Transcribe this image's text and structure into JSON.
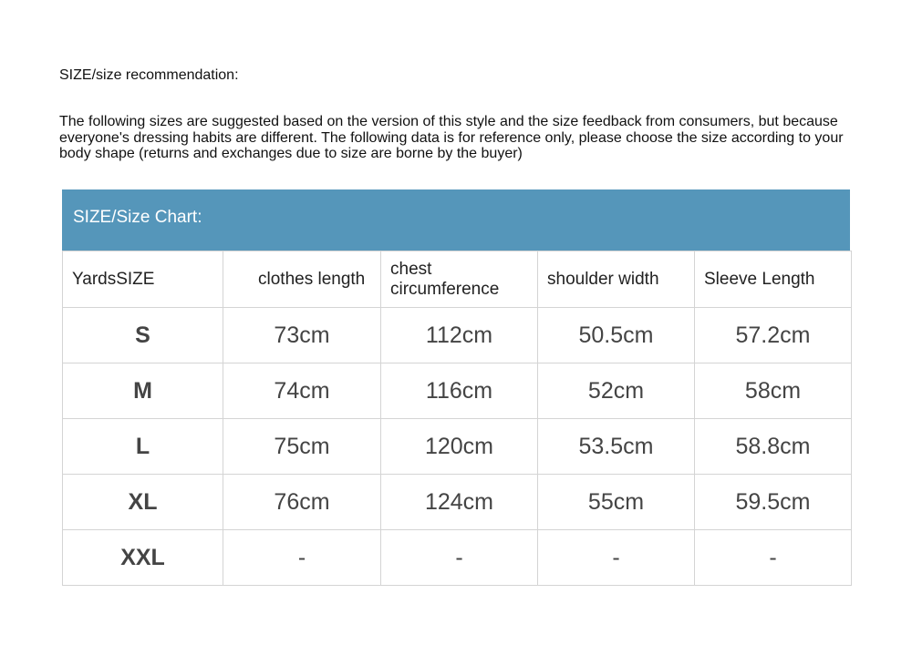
{
  "heading": "SIZE/size recommendation:",
  "intro": "The following sizes are suggested based on the version of this style and the size feedback from consumers, but because everyone's dressing habits are different. The following data is for reference only, please choose the size according to your body shape (returns and exchanges due to size are borne by the buyer)",
  "chart_title": "SIZE/Size Chart:",
  "accent_color": "#5596ba",
  "columns": [
    "YardsSIZE",
    "clothes length",
    "chest circumference",
    "shoulder width",
    "Sleeve Length"
  ],
  "rows": [
    [
      "S",
      "73cm",
      "112cm",
      "50.5cm",
      "57.2cm"
    ],
    [
      "M",
      "74cm",
      "116cm",
      "52cm",
      "58cm"
    ],
    [
      "L",
      "75cm",
      "120cm",
      "53.5cm",
      "58.8cm"
    ],
    [
      "XL",
      "76cm",
      "124cm",
      "55cm",
      "59.5cm"
    ],
    [
      "XXL",
      "-",
      "-",
      "-",
      "-"
    ]
  ]
}
